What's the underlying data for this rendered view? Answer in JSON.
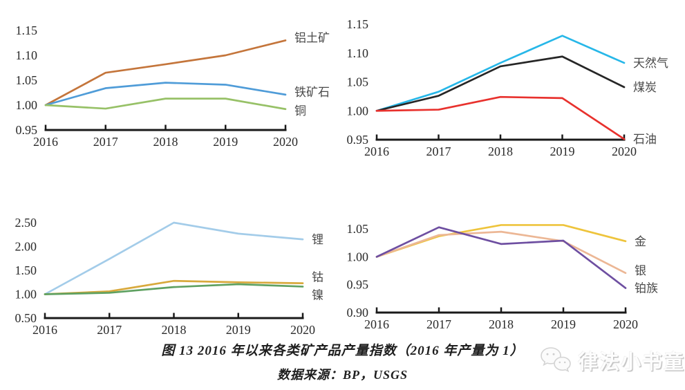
{
  "figure": {
    "caption": "图 13 2016 年以来各类矿产品产量指数（2016 年产量为 1）",
    "source": "数据来源：BP，USGS"
  },
  "watermark": {
    "text": "律法小书童",
    "icon": "wechat-icon"
  },
  "chart_data": [
    {
      "type": "line",
      "position": "top-left",
      "title": "",
      "xlabel": "",
      "ylabel": "",
      "x": [
        2016,
        2017,
        2018,
        2019,
        2020
      ],
      "ylim": [
        0.95,
        1.15
      ],
      "yticks": [
        0.95,
        1.0,
        1.05,
        1.1,
        1.15
      ],
      "grid": false,
      "legend_position": "line-end-right",
      "series": [
        {
          "name": "铝土矿",
          "color": "#c4753b",
          "values": [
            1.0,
            1.065,
            1.082,
            1.1,
            1.13
          ],
          "label_dy": -4
        },
        {
          "name": "铁矿石",
          "color": "#4f9cd8",
          "values": [
            1.0,
            1.034,
            1.045,
            1.041,
            1.021
          ],
          "label_dy": -4
        },
        {
          "name": "铜",
          "color": "#97c167",
          "values": [
            1.0,
            0.993,
            1.013,
            1.013,
            0.992
          ],
          "label_dy": 2
        }
      ]
    },
    {
      "type": "line",
      "position": "top-right",
      "title": "",
      "xlabel": "",
      "ylabel": "",
      "x": [
        2016,
        2017,
        2018,
        2019,
        2020
      ],
      "ylim": [
        0.95,
        1.15
      ],
      "yticks": [
        0.95,
        1.0,
        1.05,
        1.1,
        1.15
      ],
      "grid": false,
      "legend_position": "line-end-right",
      "series": [
        {
          "name": "天然气",
          "color": "#27b7e8",
          "values": [
            1.0,
            1.033,
            1.083,
            1.13,
            1.083
          ],
          "label_dy": 0
        },
        {
          "name": "煤炭",
          "color": "#262626",
          "values": [
            1.0,
            1.026,
            1.077,
            1.094,
            1.041
          ],
          "label_dy": 0
        },
        {
          "name": "石油",
          "color": "#e8312d",
          "values": [
            1.0,
            1.002,
            1.024,
            1.022,
            0.951
          ],
          "label_dy": 0
        }
      ]
    },
    {
      "type": "line",
      "position": "bottom-left",
      "title": "",
      "xlabel": "",
      "ylabel": "",
      "x": [
        2016,
        2017,
        2018,
        2019,
        2020
      ],
      "ylim": [
        0.5,
        2.5
      ],
      "yticks": [
        0.5,
        1.0,
        1.5,
        2.0,
        2.5
      ],
      "grid": false,
      "legend_position": "line-end-right",
      "series": [
        {
          "name": "锂",
          "color": "#a3cce9",
          "values": [
            1.0,
            1.74,
            2.5,
            2.27,
            2.15
          ],
          "label_dy": 0
        },
        {
          "name": "钴",
          "color": "#d8a93c",
          "values": [
            1.0,
            1.06,
            1.28,
            1.25,
            1.23
          ],
          "label_dy": -9
        },
        {
          "name": "镍",
          "color": "#5fa161",
          "values": [
            1.0,
            1.03,
            1.15,
            1.21,
            1.16
          ],
          "label_dy": 12
        }
      ]
    },
    {
      "type": "line",
      "position": "bottom-right",
      "title": "",
      "xlabel": "",
      "ylabel": "",
      "x": [
        2016,
        2017,
        2018,
        2019,
        2020
      ],
      "ylim": [
        0.9,
        1.065
      ],
      "yticks": [
        0.9,
        0.95,
        1.0,
        1.05
      ],
      "grid": false,
      "legend_position": "line-end-right",
      "series": [
        {
          "name": "金",
          "color": "#eec43c",
          "values": [
            1.0,
            1.037,
            1.057,
            1.057,
            1.028
          ],
          "label_dy": 0
        },
        {
          "name": "银",
          "color": "#ecb795",
          "values": [
            1.0,
            1.039,
            1.045,
            1.028,
            0.971
          ],
          "label_dy": -4
        },
        {
          "name": "铂族",
          "color": "#6e4fa1",
          "values": [
            1.0,
            1.053,
            1.023,
            1.029,
            0.944
          ],
          "label_dy": 0
        }
      ]
    }
  ]
}
